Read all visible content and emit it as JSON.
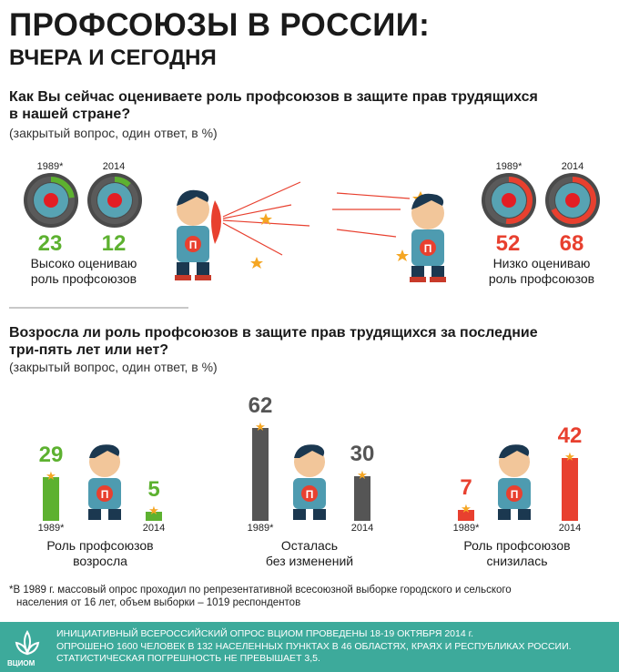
{
  "header": {
    "title_line1": "ПРОФСОЮЗЫ В РОССИИ:",
    "title_line2": "ВЧЕРА И СЕГОДНЯ"
  },
  "q1": {
    "question_line1": "Как Вы сейчас оцениваете роль профсоюзов в защите прав трудящихся",
    "question_line2": "в нашей стране?",
    "note": "(закрытый вопрос, один ответ, в %)"
  },
  "q2": {
    "question_line1": "Возросла ли роль профсоюзов в защите прав трудящихся за последние",
    "question_line2": "три-пять лет или нет?",
    "note": "(закрытый вопрос, один ответ, в %)"
  },
  "chart_data": [
    {
      "type": "pie",
      "categories": [
        "1989*",
        "2014"
      ],
      "values": [
        23,
        12
      ],
      "label_line1": "Высоко оцениваю",
      "label_line2": "роль профсоюзов",
      "color": "#5db130"
    },
    {
      "type": "pie",
      "categories": [
        "1989*",
        "2014"
      ],
      "values": [
        52,
        68
      ],
      "label_line1": "Низко оцениваю",
      "label_line2": "роль профсоюзов",
      "color": "#e8402f"
    },
    {
      "type": "bar",
      "categories": [
        "1989*",
        "2014"
      ],
      "values": [
        29,
        5
      ],
      "label_line1": "Роль профсоюзов",
      "label_line2": "возросла",
      "color": "#5db130"
    },
    {
      "type": "bar",
      "categories": [
        "1989*",
        "2014"
      ],
      "values": [
        62,
        30
      ],
      "label_line1": "Осталась",
      "label_line2": "без изменений",
      "color": "#555555"
    },
    {
      "type": "bar",
      "categories": [
        "1989*",
        "2014"
      ],
      "values": [
        7,
        42
      ],
      "label_line1": "Роль профсоюзов",
      "label_line2": "снизилась",
      "color": "#e8402f"
    }
  ],
  "hero_letter": "П",
  "footnote": {
    "line1": "*В 1989 г. массовый опрос проходил по репрезентативной всесоюзной выборке городского и сельского",
    "line2": "населения от 16 лет, объем выборки – 1019 респондентов"
  },
  "footer": {
    "line1": "ИНИЦИАТИВНЫЙ ВСЕРОССИЙСКИЙ ОПРОС ВЦИОМ ПРОВЕДЕНЫ 18-19 ОКТЯБРЯ 2014 г.",
    "line2": "ОПРОШЕНО 1600 ЧЕЛОВЕК В 132 НАСЕЛЕННЫХ ПУНКТАХ В 46 ОБЛАСТЯХ, КРАЯХ И РЕСПУБЛИКАХ РОССИИ.",
    "line3": "СТАТИСТИЧЕСКАЯ ПОГРЕШНОСТЬ НЕ ПРЕВЫШАЕТ 3,5.",
    "logo": "ВЦИОМ"
  }
}
